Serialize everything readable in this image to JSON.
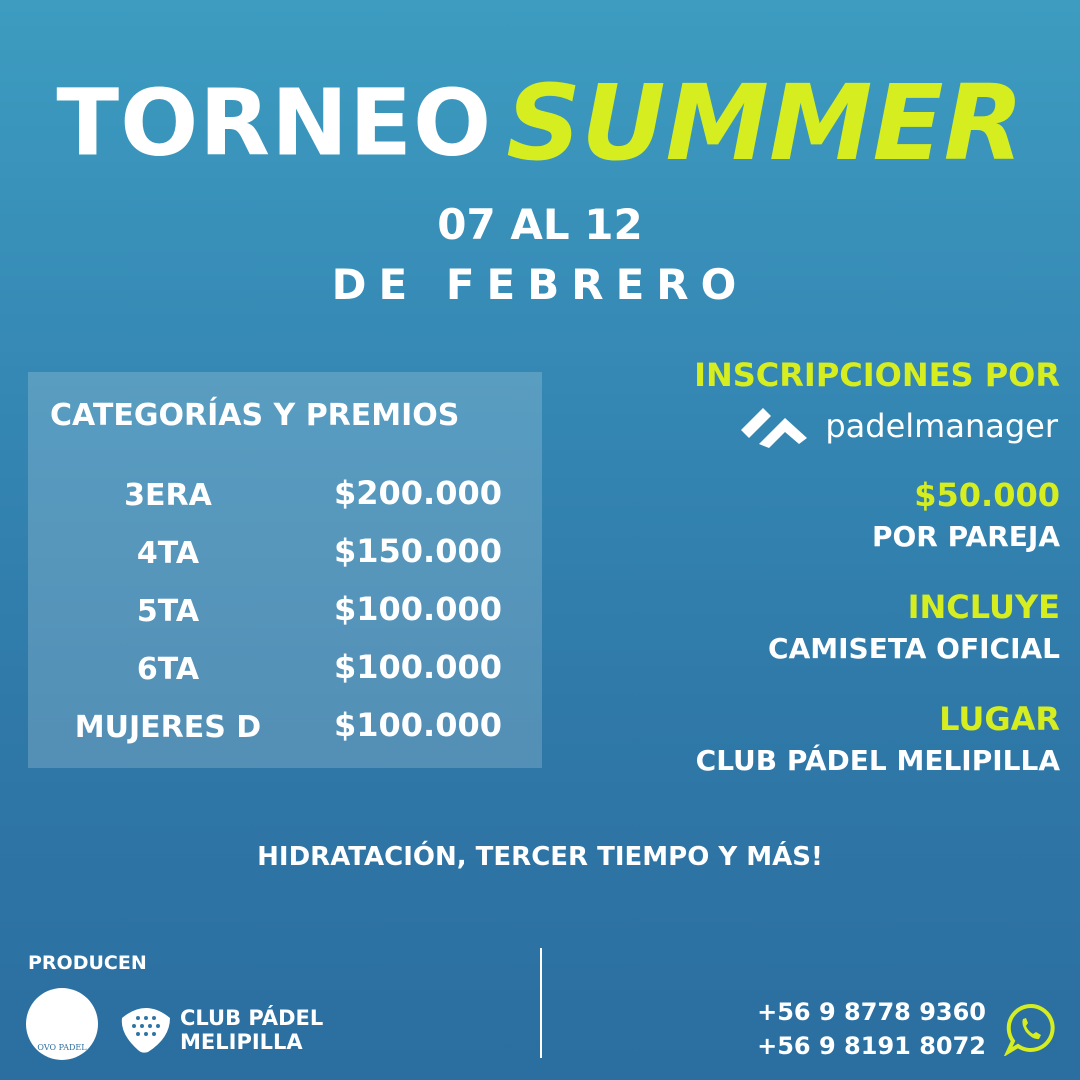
{
  "title": {
    "torneo": "TORNEO",
    "summer": "SUMMER"
  },
  "dates": {
    "line1": "07 AL 12",
    "line2": "DE FEBRERO"
  },
  "categories": {
    "heading": "CATEGORÍAS Y PREMIOS",
    "rows": [
      {
        "name": "3ERA",
        "prize": "$200.000"
      },
      {
        "name": "4TA",
        "prize": "$150.000"
      },
      {
        "name": "5TA",
        "prize": "$100.000"
      },
      {
        "name": "6TA",
        "prize": "$100.000"
      },
      {
        "name": "MUJERES D",
        "prize": "$100.000"
      }
    ]
  },
  "info": {
    "inscripciones": "INSCRIPCIONES POR",
    "platform": "padelmanager",
    "price": "$50.000",
    "price_note": "POR PAREJA",
    "incluye": "INCLUYE",
    "incluye_value": "CAMISETA OFICIAL",
    "lugar": "LUGAR",
    "lugar_value": "CLUB PÁDEL MELIPILLA"
  },
  "extras": "HIDRATACIÓN, TERCER TIEMPO Y MÁS!",
  "footer": {
    "producen": "PRODUCEN",
    "ovo": "OVO PADEL",
    "club_line1": "CLUB PÁDEL",
    "club_line2": "MELIPILLA",
    "phones": [
      "+56 9 8778 9360",
      "+56 9 8191 8072"
    ],
    "whatsapp_icon": "whatsapp-icon"
  },
  "colors": {
    "accent": "#d6ee1f",
    "background": "#3588b4"
  }
}
